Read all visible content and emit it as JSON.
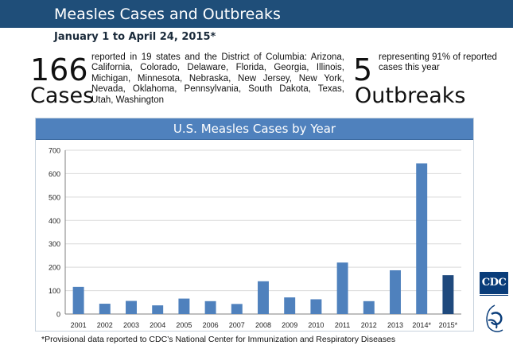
{
  "header": {
    "title": "Measles Cases and Outbreaks",
    "subtitle": "January 1 to April 24, 2015*"
  },
  "stats": {
    "cases": {
      "number": "166",
      "word": "Cases",
      "description": "reported in 19 states and the District of Columbia: Arizona, California, Colorado, Delaware, Florida, Georgia, Illinois, Michigan, Minnesota, Nebraska, New Jersey, New York, Nevada, Oklahoma, Pennsylvania, South Dakota, Texas, Utah, Washington"
    },
    "outbreaks": {
      "number": "5",
      "word": "Outbreaks",
      "description": "representing 91% of reported cases this year"
    }
  },
  "chart_data": {
    "type": "bar",
    "title": "U.S. Measles Cases by Year",
    "xlabel": "",
    "ylabel": "",
    "ylim": [
      0,
      700
    ],
    "yticks": [
      0,
      100,
      200,
      300,
      400,
      500,
      600,
      700
    ],
    "grid": true,
    "categories": [
      "2001",
      "2002",
      "2003",
      "2004",
      "2005",
      "2006",
      "2007",
      "2008",
      "2009",
      "2010",
      "2011",
      "2012",
      "2013",
      "2014*",
      "2015*"
    ],
    "values": [
      116,
      44,
      56,
      37,
      66,
      55,
      43,
      140,
      71,
      63,
      220,
      55,
      187,
      644,
      166
    ],
    "colors": {
      "bar": "#4f81bd",
      "highlight_bar": "#1f497d",
      "header": "#4f81bd",
      "banner": "#1f4e79"
    },
    "highlight_category": "2015*"
  },
  "footnote": "*Provisional data reported to CDC’s National Center for Immunization and Respiratory Diseases",
  "logos": {
    "cdc": "CDC",
    "hhs": "hhs-seal-icon"
  }
}
